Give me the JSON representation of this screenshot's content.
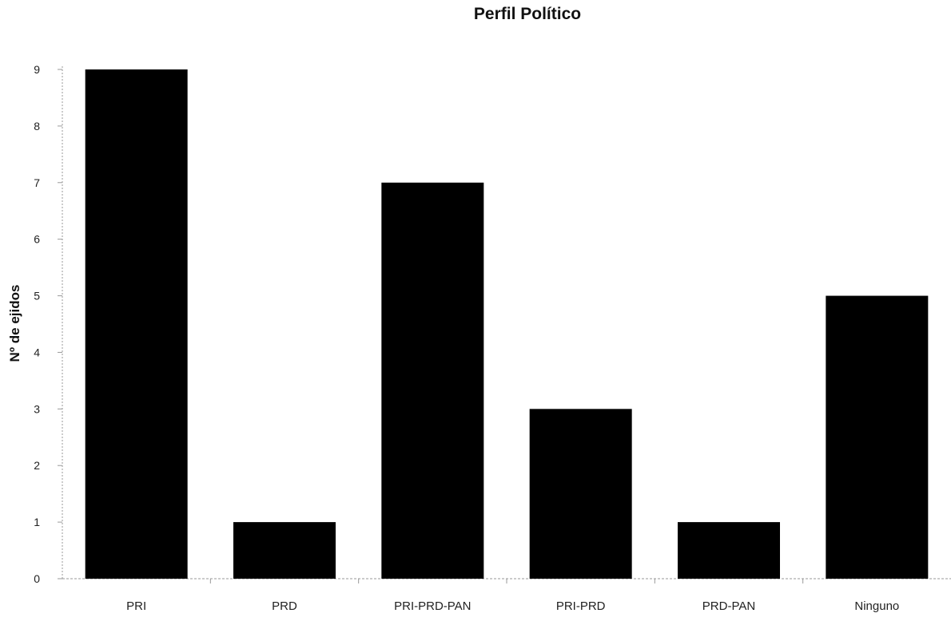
{
  "chart_data": {
    "type": "bar",
    "title": "Perfil Político",
    "xlabel": "",
    "ylabel": "Nº de ejidos",
    "categories": [
      "PRI",
      "PRD",
      "PRI-PRD-PAN",
      "PRI-PRD",
      "PRD-PAN",
      "Ninguno"
    ],
    "values": [
      9,
      1,
      7,
      3,
      1,
      5
    ],
    "ylim": [
      0,
      9
    ],
    "yticks": [
      "0",
      "1",
      "2",
      "3",
      "4",
      "5",
      "6",
      "7",
      "8",
      "9"
    ],
    "grid": false,
    "legend": "none",
    "bar_color": "#000000",
    "axis_color": "#9a9a9a"
  }
}
